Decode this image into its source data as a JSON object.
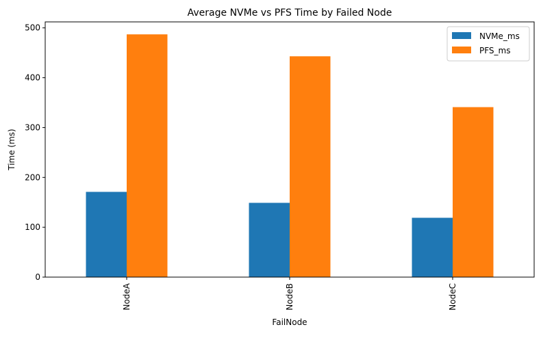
{
  "chart_data": {
    "type": "bar",
    "title": "Average NVMe vs PFS Time by Failed Node",
    "xlabel": "FailNode",
    "ylabel": "Time (ms)",
    "categories": [
      "NodeA",
      "NodeB",
      "NodeC"
    ],
    "series": [
      {
        "name": "NVMe_ms",
        "color": "#1f77b4",
        "values": [
          171,
          149,
          119
        ]
      },
      {
        "name": "PFS_ms",
        "color": "#ff7f0e",
        "values": [
          487,
          443,
          341
        ]
      }
    ],
    "ylim": [
      0,
      512
    ],
    "yticks": [
      0,
      100,
      200,
      300,
      400,
      500
    ],
    "grid": false,
    "legend_position": "top-right"
  }
}
